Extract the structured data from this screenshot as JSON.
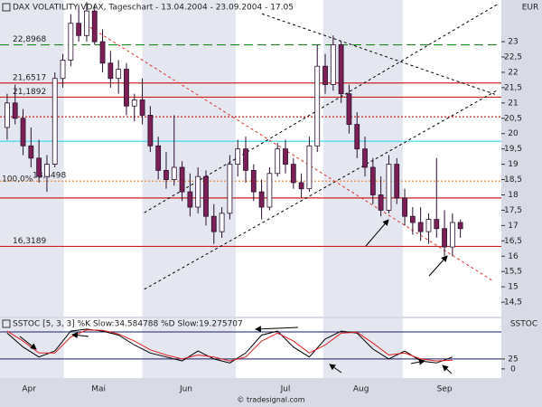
{
  "chart_data": [
    {
      "type": "candlestick",
      "title": "DAX VOLATILITY VDAX, Tageschart - 13.04.2004 - 23.09.2004 - 17.05",
      "y_label": "EUR",
      "xlim": [
        -1.8,
        124.3
      ],
      "xticks": [
        {
          "value": 5.5,
          "label": "Apr"
        },
        {
          "value": 23,
          "label": "Mai"
        },
        {
          "value": 45,
          "label": "Jun"
        },
        {
          "value": 70,
          "label": "Jul"
        },
        {
          "value": 89,
          "label": "Aug"
        },
        {
          "value": 110,
          "label": "Sep"
        }
      ],
      "ylim": [
        14.03,
        24.36
      ],
      "yticks": [
        {
          "value": 14.5,
          "label": "14,5"
        },
        15,
        {
          "value": 15.5,
          "label": "15,5"
        },
        16,
        {
          "value": 16.5,
          "label": "16,5"
        },
        17,
        {
          "value": 17.5,
          "label": "17,5"
        },
        18,
        {
          "value": 18.5,
          "label": "18,5"
        },
        19,
        {
          "value": 19.5,
          "label": "19,5"
        },
        20,
        {
          "value": 20.5,
          "label": "20,5"
        },
        21,
        {
          "value": 21.5,
          "label": "21,5"
        },
        22,
        {
          "value": 22.5,
          "label": "22,5"
        },
        23
      ],
      "up_color": "#ffffff",
      "down_color": "#7b1f55",
      "outline_color": "#2a1030",
      "x": [
        0,
        2,
        4,
        6,
        8,
        10,
        12,
        14,
        16,
        18,
        20,
        22,
        24,
        26,
        28,
        30,
        32,
        34,
        36,
        38,
        40,
        42,
        44,
        46,
        48,
        50,
        52,
        54,
        56,
        58,
        60,
        62,
        64,
        66,
        68,
        70,
        72,
        74,
        76,
        78,
        80,
        82,
        84,
        86,
        88,
        90,
        92,
        94,
        96,
        98,
        100,
        102,
        104,
        106,
        108,
        110,
        112,
        114
      ],
      "open": [
        20.2,
        21.0,
        20.5,
        19.6,
        19.2,
        18.6,
        19.0,
        21.8,
        22.4,
        23.6,
        23.2,
        24.0,
        23.0,
        22.3,
        21.8,
        22.1,
        20.9,
        21.1,
        20.6,
        19.6,
        18.8,
        18.5,
        18.9,
        18.1,
        17.6,
        18.6,
        17.3,
        16.8,
        17.4,
        19.0,
        19.5,
        18.8,
        18.1,
        17.6,
        18.7,
        19.5,
        19.0,
        18.4,
        18.2,
        19.6,
        22.2,
        21.6,
        22.9,
        21.3,
        20.3,
        19.5,
        18.9,
        18.0,
        17.5,
        19.0,
        17.9,
        17.3,
        17.1,
        16.8,
        17.2,
        16.9,
        16.3,
        17.1
      ],
      "high": [
        21.3,
        21.6,
        20.8,
        20.2,
        19.8,
        19.3,
        22.0,
        22.6,
        23.9,
        24.2,
        24.3,
        24.2,
        23.4,
        22.7,
        22.4,
        22.3,
        21.3,
        21.8,
        20.9,
        19.9,
        19.4,
        20.6,
        19.1,
        18.7,
        18.9,
        18.8,
        17.7,
        17.6,
        19.3,
        19.8,
        19.9,
        19.0,
        18.5,
        18.9,
        19.7,
        19.8,
        19.2,
        18.7,
        19.9,
        22.9,
        22.6,
        23.2,
        23.0,
        21.6,
        20.7,
        19.9,
        19.2,
        18.6,
        19.3,
        19.2,
        18.2,
        17.6,
        17.6,
        17.4,
        19.2,
        17.5,
        17.4,
        17.2
      ],
      "low": [
        19.8,
        20.3,
        19.3,
        18.9,
        18.4,
        18.1,
        18.9,
        21.5,
        22.2,
        23.0,
        23.0,
        22.9,
        22.0,
        21.5,
        21.3,
        20.6,
        20.4,
        20.3,
        19.4,
        18.5,
        18.2,
        18.3,
        17.8,
        17.3,
        17.4,
        17.0,
        16.4,
        16.6,
        17.2,
        18.6,
        18.4,
        17.8,
        17.2,
        17.5,
        18.6,
        18.7,
        18.2,
        17.9,
        18.1,
        19.4,
        21.3,
        21.4,
        21.0,
        20.0,
        19.2,
        18.6,
        17.7,
        17.3,
        17.4,
        17.7,
        17.0,
        16.7,
        16.5,
        16.4,
        16.6,
        16.0,
        16.0,
        16.6
      ],
      "close": [
        21.0,
        20.5,
        19.6,
        19.2,
        18.6,
        19.0,
        21.8,
        22.4,
        23.6,
        23.2,
        24.0,
        23.0,
        22.3,
        21.8,
        22.1,
        20.9,
        21.1,
        20.6,
        19.6,
        18.8,
        18.5,
        18.9,
        18.1,
        17.6,
        18.6,
        17.3,
        16.8,
        17.4,
        19.0,
        19.5,
        18.8,
        18.1,
        17.6,
        18.7,
        19.5,
        19.0,
        18.4,
        18.2,
        19.6,
        22.2,
        21.6,
        22.9,
        21.3,
        20.3,
        19.5,
        18.9,
        18.0,
        17.5,
        19.0,
        17.9,
        17.3,
        17.1,
        16.8,
        17.2,
        16.9,
        16.3,
        17.1,
        16.9
      ],
      "levels": [
        {
          "value": 22.8968,
          "label": "22,8968",
          "color": "#1a8a1a",
          "dash": "10,5"
        },
        {
          "value": 21.6517,
          "label": "21,6517",
          "color": "#d02020",
          "dash": "none"
        },
        {
          "value": 21.1892,
          "label": "21,1892",
          "color": "#d02020",
          "dash": "none"
        },
        {
          "value": 20.55,
          "color": "#d02020",
          "dash": "2,2"
        },
        {
          "value": 19.75,
          "color": "#30d8e8",
          "dash": "none"
        },
        {
          "value": 18.4498,
          "label": "18,4498",
          "note": "100,0%",
          "color": "#e89040",
          "dash": "2,2"
        },
        {
          "value": 17.9,
          "color": "#d02020",
          "dash": "none"
        },
        {
          "value": 16.3189,
          "label": "16,3189",
          "color": "#d02020",
          "dash": "none"
        }
      ],
      "trendlines": [
        {
          "x": [
            34.5,
            123.2
          ],
          "y": [
            17.42,
            24.21
          ],
          "color": "#000000"
        },
        {
          "x": [
            34.5,
            123.2
          ],
          "y": [
            14.92,
            21.41
          ],
          "color": "#000000"
        },
        {
          "x": [
            64.1,
            123.2
          ],
          "y": [
            23.91,
            21.26
          ],
          "color": "#000000"
        },
        {
          "x": [
            20.9,
            122
          ],
          "y": [
            23.47,
            15.21
          ],
          "color": "#e03030"
        }
      ]
    },
    {
      "type": "line",
      "title": "SSTOC [5, 3, 3] %K Slow:34.584788 %D Slow:19.275707",
      "y_label": "SSTOC",
      "ylim": [
        -23,
        127
      ],
      "yticks": [
        0,
        25
      ],
      "levels": [
        93,
        25
      ],
      "x": [
        0,
        4,
        8,
        12,
        16,
        20,
        24,
        28,
        32,
        36,
        40,
        44,
        48,
        52,
        56,
        60,
        64,
        68,
        72,
        76,
        80,
        84,
        88,
        92,
        96,
        100,
        104,
        108,
        112
      ],
      "series": [
        {
          "color": "#000000",
          "values": [
            90,
            55,
            30,
            45,
            95,
            100,
            95,
            85,
            60,
            40,
            30,
            20,
            45,
            25,
            15,
            40,
            85,
            95,
            55,
            30,
            75,
            95,
            90,
            50,
            25,
            45,
            20,
            15,
            30
          ]
        },
        {
          "color": "#e02020",
          "values": [
            95,
            70,
            40,
            40,
            80,
            98,
            97,
            88,
            70,
            48,
            35,
            25,
            35,
            30,
            20,
            30,
            70,
            90,
            70,
            40,
            60,
            90,
            92,
            65,
            35,
            40,
            25,
            20,
            22
          ]
        }
      ]
    }
  ],
  "footer": "© tradesignal.com"
}
